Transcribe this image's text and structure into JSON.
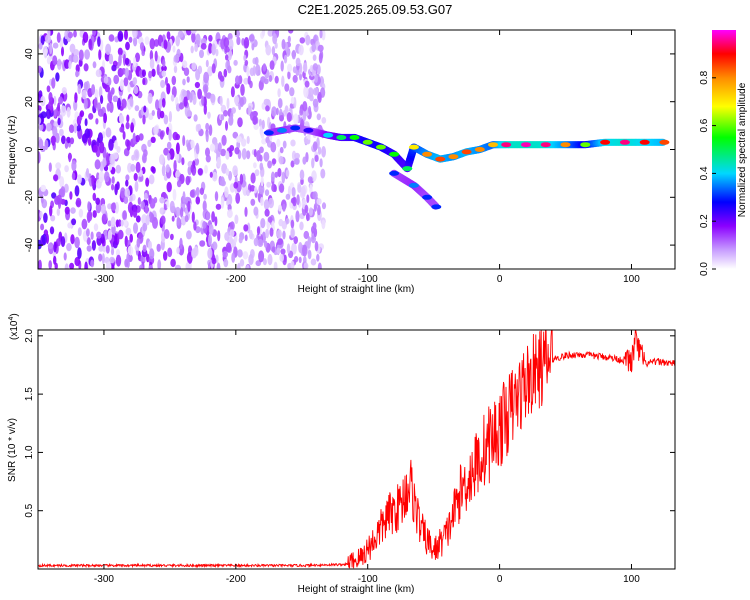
{
  "figure_title": "C2E1.2025.265.09.53.G07",
  "chart_data": [
    {
      "type": "heatmap",
      "title": "C2E1.2025.265.09.53.G07",
      "xlabel": "Height of straight line (km)",
      "ylabel": "Frequency (Hz)",
      "xlim": [
        -350,
        133
      ],
      "ylim": [
        -50,
        50
      ],
      "xticks": [
        -300,
        -200,
        -100,
        0,
        100
      ],
      "yticks": [
        -40,
        -20,
        0,
        20,
        40
      ],
      "colorbar": {
        "label": "Normalized spectral amplitude",
        "range": [
          0,
          1
        ],
        "ticks": [
          0.0,
          0.2,
          0.4,
          0.6,
          0.8
        ],
        "colormap": [
          "#ffffff",
          "#8b00ff",
          "#0000ff",
          "#00ffff",
          "#00ff00",
          "#ffff00",
          "#ff8000",
          "#ff0000",
          "#ff00ff"
        ]
      },
      "noise_region_x": [
        -350,
        -133
      ],
      "signal_track": [
        {
          "x": -175,
          "f": 7,
          "amp": 0.3
        },
        {
          "x": -165,
          "f": 8,
          "amp": 0.35
        },
        {
          "x": -155,
          "f": 9,
          "amp": 0.3
        },
        {
          "x": -145,
          "f": 8,
          "amp": 0.25
        },
        {
          "x": -130,
          "f": 6,
          "amp": 0.4
        },
        {
          "x": -120,
          "f": 5,
          "amp": 0.5
        },
        {
          "x": -110,
          "f": 5,
          "amp": 0.55
        },
        {
          "x": -100,
          "f": 3,
          "amp": 0.6
        },
        {
          "x": -90,
          "f": 1,
          "amp": 0.6
        },
        {
          "x": -80,
          "f": -2,
          "amp": 0.55
        },
        {
          "x": -70,
          "f": -8,
          "amp": 0.5
        },
        {
          "x": -65,
          "f": 1,
          "amp": 0.7
        },
        {
          "x": -55,
          "f": -2,
          "amp": 0.8
        },
        {
          "x": -45,
          "f": -4,
          "amp": 0.85
        },
        {
          "x": -35,
          "f": -3,
          "amp": 0.8
        },
        {
          "x": -25,
          "f": -1,
          "amp": 0.85
        },
        {
          "x": -15,
          "f": 0,
          "amp": 0.8
        },
        {
          "x": -5,
          "f": 2,
          "amp": 0.75
        },
        {
          "x": 5,
          "f": 2,
          "amp": 0.95
        },
        {
          "x": 20,
          "f": 2,
          "amp": 0.97
        },
        {
          "x": 35,
          "f": 2,
          "amp": 0.95
        },
        {
          "x": 50,
          "f": 2,
          "amp": 0.8
        },
        {
          "x": 65,
          "f": 2,
          "amp": 0.6
        },
        {
          "x": 80,
          "f": 3,
          "amp": 0.9
        },
        {
          "x": 95,
          "f": 3,
          "amp": 0.95
        },
        {
          "x": 110,
          "f": 3,
          "amp": 0.9
        },
        {
          "x": 125,
          "f": 3,
          "amp": 0.85
        }
      ],
      "secondary_branch": [
        {
          "x": -80,
          "f": -10,
          "amp": 0.3
        },
        {
          "x": -65,
          "f": -15,
          "amp": 0.35
        },
        {
          "x": -55,
          "f": -20,
          "amp": 0.3
        },
        {
          "x": -48,
          "f": -24,
          "amp": 0.3
        }
      ]
    },
    {
      "type": "line",
      "xlabel": "Height of straight line (km)",
      "ylabel": "SNR (10 * v/v)",
      "y_multiplier_label": "(x10",
      "y_multiplier_exponent": "4",
      "xlim": [
        -350,
        133
      ],
      "ylim": [
        0,
        2.05
      ],
      "xticks": [
        -300,
        -200,
        -100,
        0,
        100
      ],
      "yticks": [
        0.5,
        1.0,
        1.5,
        2.0
      ],
      "color": "#ff0000",
      "series": [
        {
          "name": "SNR",
          "x": [
            -350,
            -250,
            -150,
            -115,
            -105,
            -95,
            -85,
            -75,
            -68,
            -60,
            -50,
            -40,
            -30,
            -20,
            -10,
            0,
            10,
            20,
            30,
            40,
            50,
            60,
            70,
            80,
            90,
            100,
            103,
            110,
            120,
            133
          ],
          "y": [
            0.03,
            0.03,
            0.03,
            0.04,
            0.1,
            0.25,
            0.45,
            0.55,
            0.75,
            0.35,
            0.15,
            0.3,
            0.65,
            0.85,
            1.05,
            1.2,
            1.4,
            1.6,
            1.72,
            1.8,
            1.83,
            1.84,
            1.83,
            1.82,
            1.8,
            1.78,
            1.95,
            1.76,
            1.78,
            1.76
          ]
        }
      ]
    }
  ]
}
